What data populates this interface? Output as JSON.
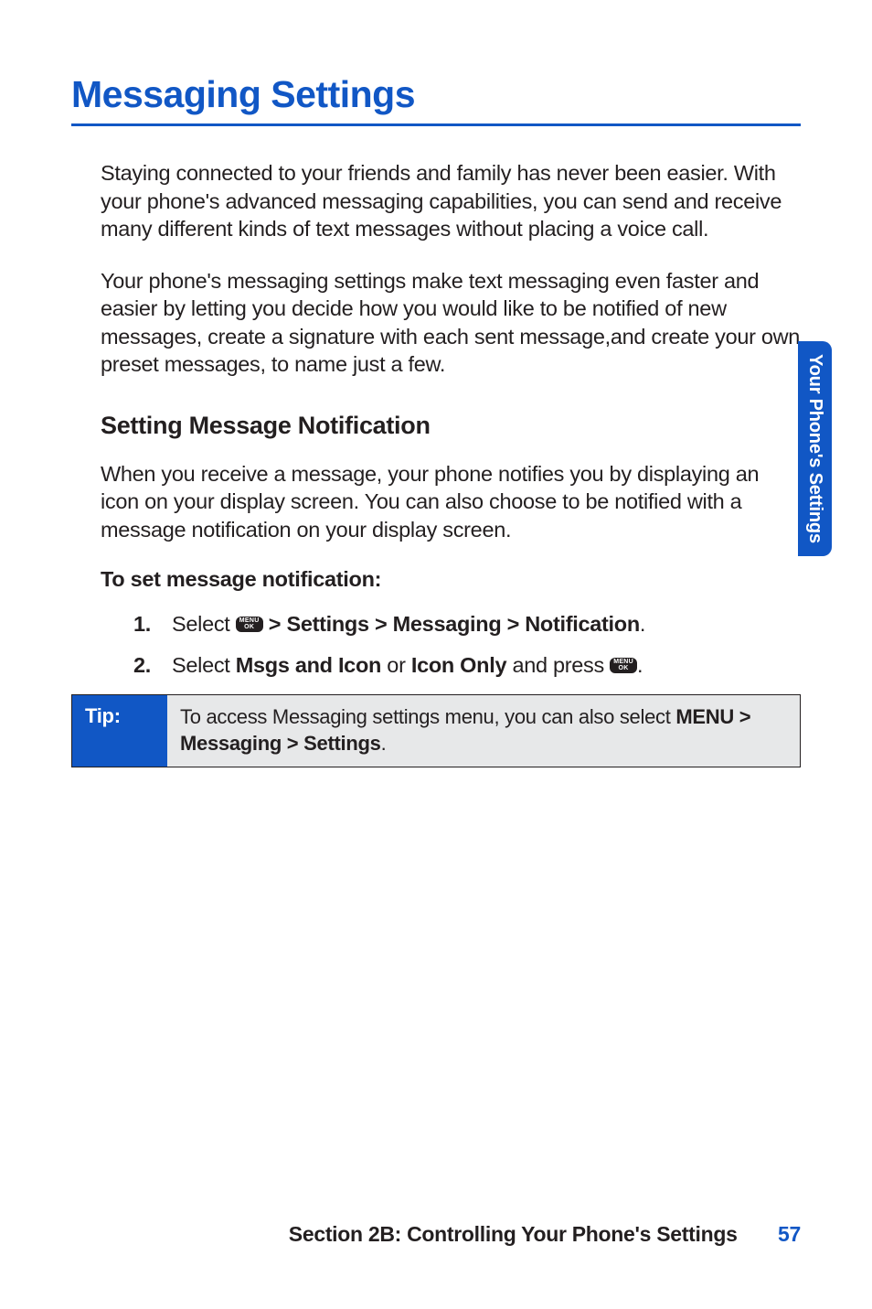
{
  "colors": {
    "accent": "#1157c5",
    "text": "#231f20",
    "tip_bg": "#e7e8e9",
    "page_bg": "#ffffff"
  },
  "typography": {
    "h1_fontsize": 41,
    "h2_fontsize": 27,
    "body_fontsize": 23.5,
    "tip_fontsize": 22,
    "footer_fontsize": 23,
    "tab_fontsize": 20
  },
  "title": "Messaging Settings",
  "intro_para_1": "Staying connected to your friends and family has never been easier. With your phone's advanced messaging capabilities, you can send and receive many different kinds of text messages without placing a voice call.",
  "intro_para_2": "Your phone's messaging settings make text messaging even faster and easier by letting you decide how you would like to be notified of new messages, create a signature with each sent message,and create your own preset messages, to name just a few.",
  "section": {
    "heading": "Setting Message Notification",
    "para": "When you receive a message, your phone notifies you by displaying an icon on your display screen. You can also choose to be notified with a message notification on your display screen.",
    "instruction_lead": "To set message notification:"
  },
  "menu_icon": {
    "line1": "MENU",
    "line2": "OK"
  },
  "steps": [
    {
      "num": "1.",
      "pre": "Select ",
      "bold": " > Settings > Messaging > Notification",
      "post": "."
    },
    {
      "num": "2.",
      "pre": "Select ",
      "bold1": "Msgs and Icon",
      "mid": " or ",
      "bold2": "Icon Only",
      "post1": " and press ",
      "post2": "."
    }
  ],
  "tip": {
    "label": "Tip:",
    "text_pre": "To access Messaging settings menu, you can also select ",
    "text_bold": "MENU > Messaging > Settings",
    "text_post": "."
  },
  "side_tab": "Your Phone's Settings",
  "footer": {
    "section": "Section 2B: Controlling Your Phone's Settings",
    "page": "57"
  }
}
